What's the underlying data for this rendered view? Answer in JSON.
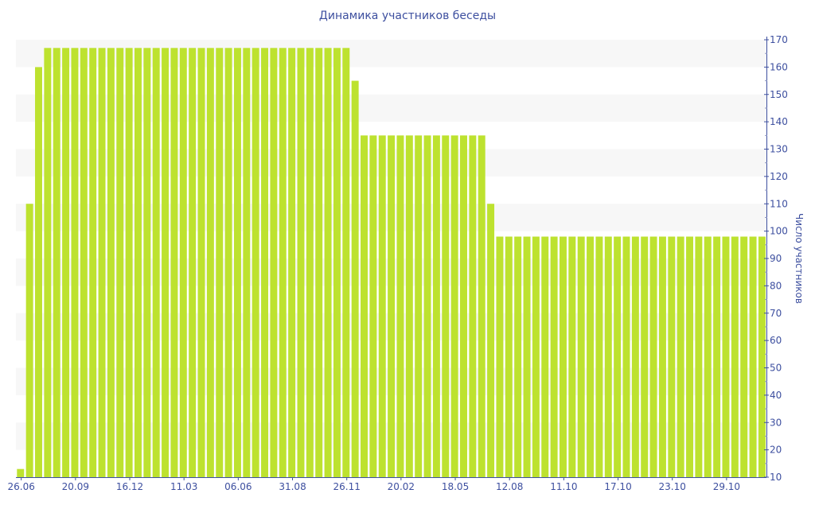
{
  "chart_data": {
    "type": "bar",
    "title": "Динамика участников беседы",
    "xlabel": "",
    "ylabel": "Число участников",
    "ylim": [
      10,
      170
    ],
    "yticks": [
      10,
      20,
      30,
      40,
      50,
      60,
      70,
      80,
      90,
      100,
      110,
      120,
      130,
      140,
      150,
      160,
      170
    ],
    "grid": "alternating horizontal bands",
    "y_axis_position": "right",
    "bar_color": "#bde22f",
    "x_tick_labels": [
      "26.06",
      "20.09",
      "16.12",
      "11.03",
      "06.06",
      "31.08",
      "26.11",
      "20.02",
      "18.05",
      "12.08",
      "11.10",
      "17.10",
      "23.10",
      "29.10"
    ],
    "x_tick_every": 6,
    "values": [
      13,
      110,
      160,
      167,
      167,
      167,
      167,
      167,
      167,
      167,
      167,
      167,
      167,
      167,
      167,
      167,
      167,
      167,
      167,
      167,
      167,
      167,
      167,
      167,
      167,
      167,
      167,
      167,
      167,
      167,
      167,
      167,
      167,
      167,
      167,
      167,
      167,
      155,
      135,
      135,
      135,
      135,
      135,
      135,
      135,
      135,
      135,
      135,
      135,
      135,
      135,
      135,
      110,
      98,
      98,
      98,
      98,
      98,
      98,
      98,
      98,
      98,
      98,
      98,
      98,
      98,
      98,
      98,
      98,
      98,
      98,
      98,
      98,
      98,
      98,
      98,
      98,
      98,
      98,
      98,
      98,
      98,
      98
    ]
  }
}
